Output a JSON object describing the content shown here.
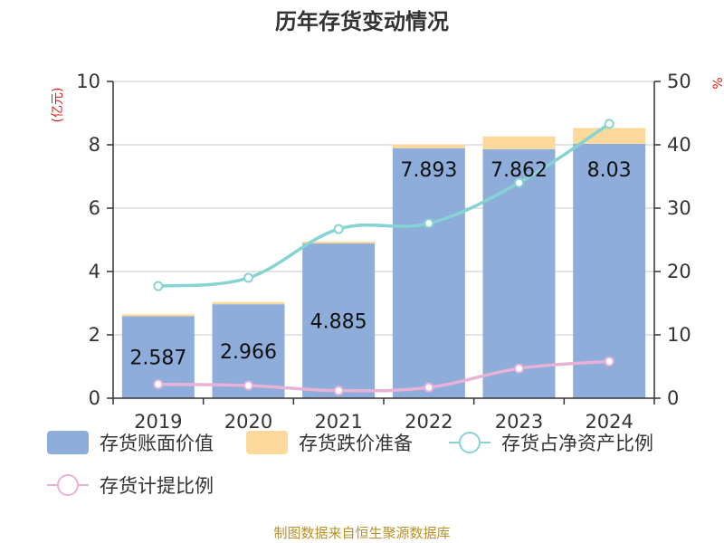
{
  "title": "历年存货变动情况",
  "source": "制图数据来自恒生聚源数据库",
  "left_unit": "(亿元)",
  "right_unit": "%",
  "colors": {
    "book_value": "#8eadda",
    "impairment": "#fdd89b",
    "ratio_net_assets": "#86d3d3",
    "provision_ratio": "#e8b2d6"
  },
  "chart_data": {
    "type": "bar",
    "categories": [
      "2019",
      "2020",
      "2021",
      "2022",
      "2023",
      "2024"
    ],
    "series": [
      {
        "name": "存货账面价值",
        "kind": "bar",
        "axis": "left",
        "values": [
          2.587,
          2.966,
          4.885,
          7.893,
          7.862,
          8.03
        ],
        "labels": [
          "2.587",
          "2.966",
          "4.885",
          "7.893",
          "7.862",
          "8.03"
        ]
      },
      {
        "name": "存货跌价准备",
        "kind": "bar-stacked",
        "axis": "left",
        "values": [
          0.06,
          0.07,
          0.06,
          0.12,
          0.4,
          0.5
        ]
      },
      {
        "name": "存货占净资产比例",
        "kind": "line",
        "axis": "right",
        "values": [
          17.7,
          19.0,
          26.7,
          27.6,
          34.0,
          43.3
        ]
      },
      {
        "name": "存货计提比例",
        "kind": "line",
        "axis": "right",
        "values": [
          2.2,
          2.0,
          1.2,
          1.7,
          4.7,
          5.8
        ]
      }
    ],
    "y_left": {
      "min": 0,
      "max": 10,
      "ticks": [
        0,
        2,
        4,
        6,
        8,
        10
      ]
    },
    "y_right": {
      "min": 0,
      "max": 50,
      "ticks": [
        0,
        10,
        20,
        30,
        40,
        50
      ]
    },
    "grid": true,
    "legend_position": "bottom"
  },
  "legend": [
    {
      "label": "存货账面价值",
      "icon": "rect",
      "color_key": "book_value"
    },
    {
      "label": "存货跌价准备",
      "icon": "rect",
      "color_key": "impairment"
    },
    {
      "label": "存货占净资产比例",
      "icon": "line-circle",
      "color_key": "ratio_net_assets"
    },
    {
      "label": "存货计提比例",
      "icon": "line-circle",
      "color_key": "provision_ratio"
    }
  ]
}
